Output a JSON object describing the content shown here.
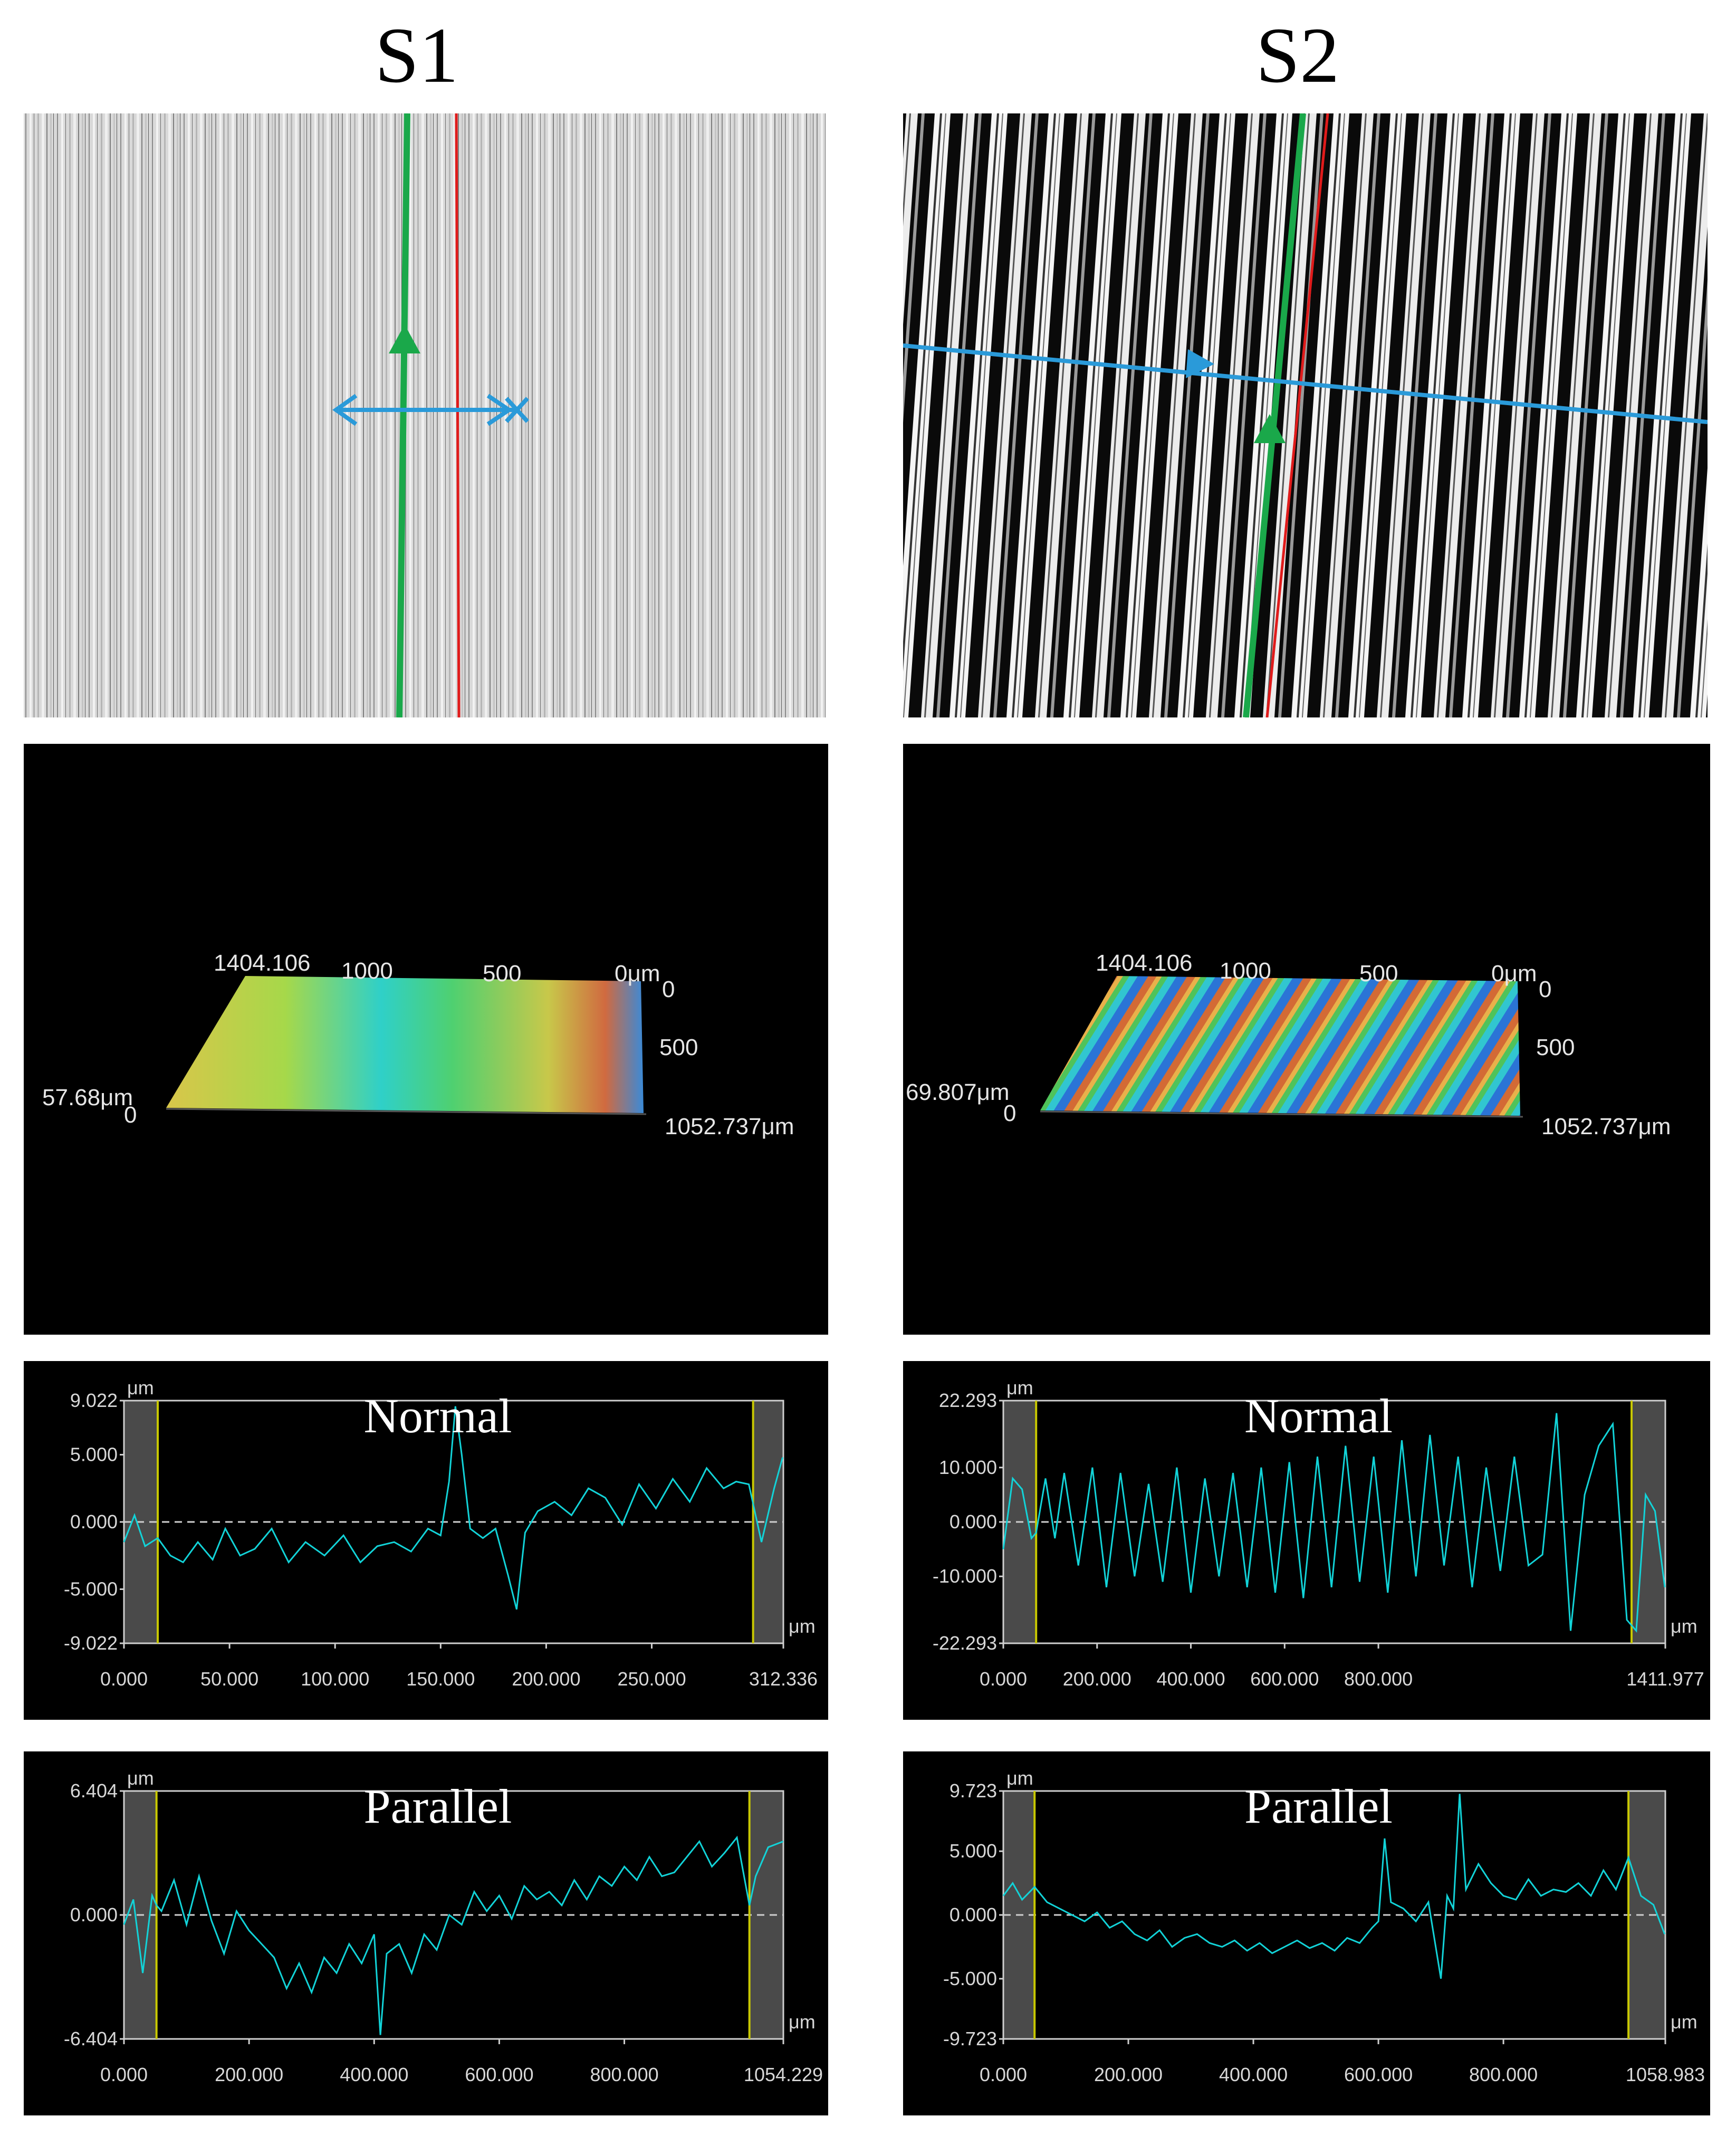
{
  "columns": [
    {
      "title": "S1"
    },
    {
      "title": "S2"
    }
  ],
  "surface3d": {
    "s1": {
      "x_max": "1404.106",
      "x_ticks": [
        "1000",
        "500",
        "0μm"
      ],
      "y_ticks": [
        "0",
        "500"
      ],
      "y_max": "1052.737μm",
      "z_max": "57.68μm",
      "z_min": "0"
    },
    "s2": {
      "x_max": "1404.106",
      "x_ticks": [
        "1000",
        "500",
        "0μm"
      ],
      "y_ticks": [
        "0",
        "500"
      ],
      "y_max": "1052.737μm",
      "z_max": "69.807μm",
      "z_min": "0"
    }
  },
  "colors": {
    "profile_line": "#12d3d8",
    "cursor_line": "#c8c800",
    "grid_dash": "#cfcfcf",
    "blue_line": "#2a9ad9",
    "green_line": "#1aa84a",
    "red_line": "#e01b1b"
  },
  "chart_data": [
    {
      "type": "line",
      "id": "s1-normal",
      "title": "Normal",
      "unit_y": "μm",
      "unit_x": "μm",
      "xlim": [
        0,
        312.336
      ],
      "ylim": [
        -9.022,
        9.022
      ],
      "y_ticks": [
        "9.022",
        "5.000",
        "0.000",
        "-5.000",
        "-9.022"
      ],
      "x_ticks": [
        "0.000",
        "50.000",
        "100.000",
        "150.000",
        "200.000",
        "250.000",
        "312.336"
      ],
      "x_tick_values": [
        0,
        50,
        100,
        150,
        200,
        250,
        312.336
      ],
      "cursors": [
        16,
        298
      ],
      "series": [
        {
          "x": [
            0,
            5,
            10,
            16,
            22,
            28,
            35,
            42,
            48,
            55,
            62,
            70,
            78,
            86,
            95,
            104,
            112,
            120,
            128,
            136,
            144,
            150,
            154,
            157,
            160,
            164,
            170,
            176,
            182,
            186,
            190,
            196,
            204,
            212,
            220,
            228,
            236,
            244,
            252,
            260,
            268,
            276,
            284,
            290,
            296,
            302,
            308,
            312
          ],
          "y": [
            -1.5,
            0.5,
            -1.8,
            -1.2,
            -2.5,
            -3,
            -1.5,
            -2.8,
            -0.5,
            -2.5,
            -2,
            -0.5,
            -3,
            -1.5,
            -2.5,
            -1,
            -3,
            -1.8,
            -1.5,
            -2.2,
            -0.5,
            -1,
            3,
            8.6,
            5,
            -0.5,
            -1.2,
            -0.5,
            -4,
            -6.5,
            -0.8,
            0.8,
            1.5,
            0.5,
            2.5,
            1.8,
            -0.2,
            2.8,
            1,
            3.2,
            1.5,
            4,
            2.5,
            3,
            2.8,
            -1.5,
            2.5,
            4.8
          ]
        }
      ]
    },
    {
      "type": "line",
      "id": "s1-parallel",
      "title": "Parallel",
      "unit_y": "μm",
      "unit_x": "μm",
      "xlim": [
        0,
        1054.229
      ],
      "ylim": [
        -6.404,
        6.404
      ],
      "y_ticks": [
        "6.404",
        "0.000",
        "-6.404"
      ],
      "x_ticks": [
        "0.000",
        "200.000",
        "400.000",
        "600.000",
        "800.000",
        "1054.229"
      ],
      "x_tick_values": [
        0,
        200,
        400,
        600,
        800,
        1054.229
      ],
      "cursors": [
        52,
        1000
      ],
      "series": [
        {
          "x": [
            0,
            15,
            30,
            45,
            52,
            60,
            80,
            100,
            120,
            140,
            160,
            180,
            200,
            220,
            240,
            260,
            280,
            300,
            320,
            340,
            360,
            380,
            400,
            410,
            420,
            440,
            460,
            480,
            500,
            520,
            540,
            560,
            580,
            600,
            620,
            640,
            660,
            680,
            700,
            720,
            740,
            760,
            780,
            800,
            820,
            840,
            860,
            880,
            900,
            920,
            940,
            960,
            980,
            1000,
            1010,
            1030,
            1054
          ],
          "y": [
            -0.5,
            0.8,
            -3,
            1,
            0.5,
            0.2,
            1.8,
            -0.5,
            2,
            -0.3,
            -2,
            0.2,
            -0.8,
            -1.5,
            -2.2,
            -3.8,
            -2.5,
            -4,
            -2.2,
            -3,
            -1.5,
            -2.5,
            -1,
            -6.2,
            -2,
            -1.5,
            -3,
            -1,
            -1.8,
            0,
            -0.5,
            1.2,
            0.2,
            1,
            -0.2,
            1.5,
            0.8,
            1.2,
            0.5,
            1.8,
            0.8,
            2,
            1.5,
            2.5,
            1.8,
            3,
            2,
            2.2,
            3,
            3.8,
            2.5,
            3.2,
            4,
            0.5,
            2,
            3.5,
            3.8
          ]
        }
      ]
    },
    {
      "type": "line",
      "id": "s2-normal",
      "title": "Normal",
      "unit_y": "μm",
      "unit_x": "μm",
      "xlim": [
        0,
        1411.977
      ],
      "ylim": [
        -22.293,
        22.293
      ],
      "y_ticks": [
        "22.293",
        "10.000",
        "0.000",
        "-10.000",
        "-22.293"
      ],
      "x_ticks": [
        "0.000",
        "200.000",
        "400.000",
        "600.000",
        "800.000",
        "1411.977"
      ],
      "x_tick_values": [
        0,
        200,
        400,
        600,
        800,
        1411.977
      ],
      "cursors": [
        70,
        1340
      ],
      "series": [
        {
          "x": [
            0,
            20,
            40,
            60,
            70,
            90,
            110,
            130,
            160,
            190,
            220,
            250,
            280,
            310,
            340,
            370,
            400,
            430,
            460,
            490,
            520,
            550,
            580,
            610,
            640,
            670,
            700,
            730,
            760,
            790,
            820,
            850,
            880,
            910,
            940,
            970,
            1000,
            1030,
            1060,
            1090,
            1120,
            1150,
            1180,
            1210,
            1240,
            1270,
            1300,
            1330,
            1350,
            1370,
            1390,
            1411
          ],
          "y": [
            -5,
            8,
            6,
            -3,
            -2,
            8,
            -3,
            9,
            -8,
            10,
            -12,
            9,
            -10,
            7,
            -11,
            10,
            -13,
            8,
            -10,
            9,
            -12,
            10,
            -13,
            11,
            -14,
            12,
            -12,
            14,
            -11,
            12,
            -13,
            15,
            -10,
            16,
            -8,
            12,
            -12,
            10,
            -9,
            12,
            -8,
            -6,
            20,
            -20,
            5,
            14,
            18,
            -18,
            -20,
            5,
            2,
            -12
          ]
        }
      ]
    },
    {
      "type": "line",
      "id": "s2-parallel",
      "title": "Parallel",
      "unit_y": "μm",
      "unit_x": "μm",
      "xlim": [
        0,
        1058.983
      ],
      "ylim": [
        -9.723,
        9.723
      ],
      "y_ticks": [
        "9.723",
        "5.000",
        "0.000",
        "-5.000",
        "-9.723"
      ],
      "x_ticks": [
        "0.000",
        "200.000",
        "400.000",
        "600.000",
        "800.000",
        "1058.983"
      ],
      "x_tick_values": [
        0,
        200,
        400,
        600,
        800,
        1058.983
      ],
      "cursors": [
        50,
        1000
      ],
      "series": [
        {
          "x": [
            0,
            15,
            30,
            50,
            70,
            90,
            110,
            130,
            150,
            170,
            190,
            210,
            230,
            250,
            270,
            290,
            310,
            330,
            350,
            370,
            390,
            410,
            430,
            450,
            470,
            490,
            510,
            530,
            550,
            570,
            590,
            600,
            610,
            620,
            640,
            660,
            680,
            700,
            710,
            720,
            730,
            740,
            760,
            780,
            800,
            820,
            840,
            860,
            880,
            900,
            920,
            940,
            960,
            980,
            1000,
            1020,
            1040,
            1058
          ],
          "y": [
            1.5,
            2.5,
            1.2,
            2.2,
            1,
            0.5,
            0,
            -0.5,
            0.2,
            -1,
            -0.5,
            -1.5,
            -2,
            -1.2,
            -2.5,
            -1.8,
            -1.5,
            -2.2,
            -2.5,
            -2,
            -2.8,
            -2.2,
            -3,
            -2.5,
            -2,
            -2.6,
            -2.2,
            -2.8,
            -1.8,
            -2.2,
            -1,
            -0.5,
            6,
            1,
            0.5,
            -0.5,
            1,
            -5,
            1.5,
            0.5,
            9.5,
            2,
            4,
            2.5,
            1.5,
            1.2,
            2.8,
            1.5,
            2,
            1.8,
            2.5,
            1.5,
            3.5,
            2,
            4.5,
            1.5,
            0.8,
            -1.5
          ]
        }
      ]
    }
  ]
}
